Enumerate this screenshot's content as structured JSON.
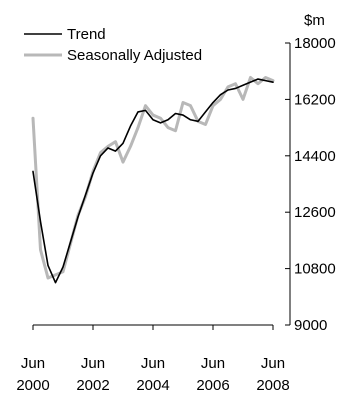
{
  "chart_data": {
    "type": "line",
    "unit_label": "$m",
    "x_ticks": [
      {
        "month": "Jun",
        "year": "2000",
        "t": 2000.5
      },
      {
        "month": "Jun",
        "year": "2002",
        "t": 2002.5
      },
      {
        "month": "Jun",
        "year": "2004",
        "t": 2004.5
      },
      {
        "month": "Jun",
        "year": "2006",
        "t": 2006.5
      },
      {
        "month": "Jun",
        "year": "2008",
        "t": 2008.5
      }
    ],
    "y_ticks": [
      9000,
      10800,
      12600,
      14400,
      16200,
      18000
    ],
    "y_tick_labels": [
      "9000",
      "10800",
      "12600",
      "14400",
      "16200",
      "18000"
    ],
    "ylim": [
      9000,
      18000
    ],
    "xlim": [
      2000.5,
      2008.5
    ],
    "legend_position": "top-left",
    "x_quarters": [
      2000.5,
      2000.75,
      2001.0,
      2001.25,
      2001.5,
      2001.75,
      2002.0,
      2002.25,
      2002.5,
      2002.75,
      2003.0,
      2003.25,
      2003.5,
      2003.75,
      2004.0,
      2004.25,
      2004.5,
      2004.75,
      2005.0,
      2005.25,
      2005.5,
      2005.75,
      2006.0,
      2006.25,
      2006.5,
      2006.75,
      2007.0,
      2007.25,
      2007.5,
      2007.75,
      2008.0,
      2008.25,
      2008.5
    ],
    "series": [
      {
        "name": "Trend",
        "color": "#000000",
        "values": [
          13900,
          12300,
          10900,
          10350,
          10850,
          11650,
          12450,
          13150,
          13850,
          14400,
          14650,
          14550,
          14800,
          15350,
          15800,
          15850,
          15550,
          15450,
          15550,
          15750,
          15700,
          15550,
          15500,
          15800,
          16100,
          16350,
          16500,
          16550,
          16650,
          16750,
          16850,
          16800,
          16750
        ]
      },
      {
        "name": "Seasonally Adjusted",
        "color": "#b8b8b8",
        "values": [
          15600,
          11400,
          10500,
          10600,
          10700,
          11600,
          12500,
          13100,
          13900,
          14500,
          14700,
          14850,
          14200,
          14700,
          15300,
          16000,
          15700,
          15600,
          15300,
          15200,
          16100,
          16000,
          15500,
          15400,
          16000,
          16200,
          16600,
          16700,
          16200,
          16900,
          16700,
          16900,
          16800
        ]
      }
    ]
  }
}
